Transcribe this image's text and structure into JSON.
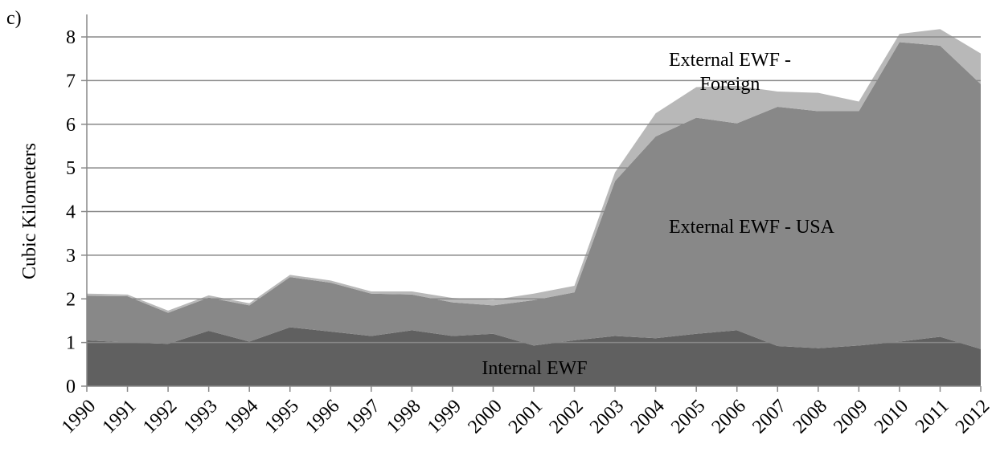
{
  "chart_data": {
    "type": "stacked_area",
    "panel_label": "c)",
    "y_label": "Cubic Kilometers",
    "x": [
      1990,
      1991,
      1992,
      1993,
      1994,
      1995,
      1996,
      1997,
      1998,
      1999,
      2000,
      2001,
      2002,
      2003,
      2004,
      2005,
      2006,
      2007,
      2008,
      2009,
      2010,
      2011,
      2012
    ],
    "series": [
      {
        "name": "Internal EWF",
        "color": "#606060",
        "values": [
          1.05,
          1.0,
          0.97,
          1.27,
          1.02,
          1.35,
          1.25,
          1.15,
          1.28,
          1.15,
          1.2,
          0.93,
          1.05,
          1.15,
          1.1,
          1.2,
          1.28,
          0.92,
          0.87,
          0.93,
          1.02,
          1.13,
          0.85
        ]
      },
      {
        "name": "External EWF - USA",
        "color": "#888888",
        "values": [
          1.02,
          1.06,
          0.71,
          0.76,
          0.83,
          1.15,
          1.12,
          0.97,
          0.82,
          0.77,
          0.65,
          1.04,
          1.1,
          3.55,
          4.62,
          4.95,
          4.74,
          5.48,
          5.43,
          5.37,
          6.86,
          6.67,
          6.07
        ]
      },
      {
        "name": "External EWF - Foreign",
        "color": "#b8b8b8",
        "values": [
          0.05,
          0.04,
          0.05,
          0.05,
          0.05,
          0.05,
          0.05,
          0.05,
          0.07,
          0.1,
          0.13,
          0.15,
          0.15,
          0.2,
          0.53,
          0.7,
          0.86,
          0.35,
          0.42,
          0.22,
          0.19,
          0.38,
          0.7
        ]
      }
    ],
    "xlim": [
      1990,
      2012
    ],
    "xticks": [
      1990,
      1991,
      1992,
      1993,
      1994,
      1995,
      1996,
      1997,
      1998,
      1999,
      2000,
      2001,
      2002,
      2003,
      2004,
      2005,
      2006,
      2007,
      2008,
      2009,
      2010,
      2011,
      2012
    ],
    "ylim": [
      0,
      8
    ],
    "yticks": [
      0,
      1,
      2,
      3,
      4,
      5,
      6,
      7,
      8
    ],
    "grid": true
  }
}
